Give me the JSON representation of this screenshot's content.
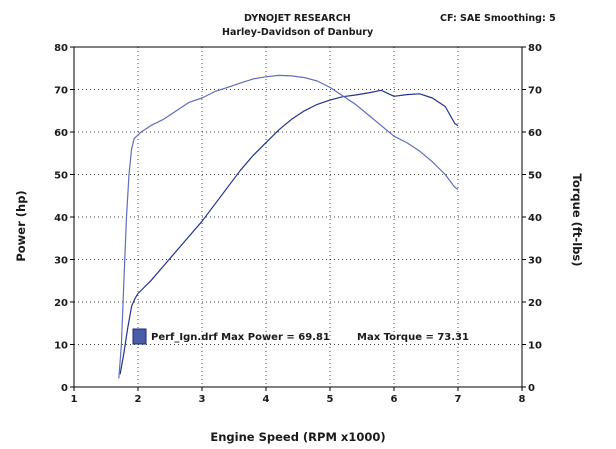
{
  "header": {
    "company": "DYNOJET RESEARCH",
    "dealer": "Harley-Davidson of Danbury",
    "settings": "CF: SAE  Smoothing: 5"
  },
  "chart_data": {
    "type": "line",
    "xlabel": "Engine Speed (RPM x1000)",
    "ylabel_left": "Power (hp)",
    "ylabel_right": "Torque (ft-lbs)",
    "xlim": [
      1,
      8
    ],
    "ylim": [
      0,
      80
    ],
    "y2lim": [
      0,
      80
    ],
    "x_ticks": [
      "1",
      "2",
      "3",
      "4",
      "5",
      "6",
      "7",
      "8"
    ],
    "y_ticks": [
      "0",
      "10",
      "20",
      "30",
      "40",
      "50",
      "60",
      "70",
      "80"
    ],
    "y2_ticks": [
      "0",
      "10",
      "20",
      "30",
      "40",
      "50",
      "60",
      "70",
      "80"
    ],
    "grid": true,
    "legend": {
      "position": "bottom-left",
      "swatch_color": "#4a5ea8",
      "text": "Perf_Ign.drf Max Power = 69.81",
      "text2": "Max Torque = 73.31"
    },
    "series": [
      {
        "axis": "left",
        "color": "#23338f",
        "x": [
          1.72,
          1.78,
          1.84,
          1.9,
          1.96,
          2.0,
          2.2,
          2.4,
          2.6,
          2.8,
          3.0,
          3.2,
          3.4,
          3.6,
          3.8,
          4.0,
          4.2,
          4.4,
          4.6,
          4.8,
          5.0,
          5.2,
          5.4,
          5.6,
          5.8,
          6.0,
          6.2,
          6.4,
          6.6,
          6.8,
          6.95,
          7.0
        ],
        "y": [
          3,
          8,
          14,
          19,
          21,
          22,
          25,
          28.5,
          32,
          35.5,
          39,
          43,
          47,
          51,
          54.5,
          57.5,
          60.5,
          63,
          65,
          66.5,
          67.5,
          68.3,
          68.7,
          69.2,
          69.81,
          68.4,
          68.8,
          69.0,
          68.0,
          66.0,
          62.0,
          61.5
        ]
      },
      {
        "axis": "right",
        "color": "#5f6fb8",
        "x": [
          1.7,
          1.74,
          1.78,
          1.82,
          1.86,
          1.9,
          1.94,
          1.98,
          2.05,
          2.2,
          2.4,
          2.6,
          2.8,
          3.0,
          3.2,
          3.4,
          3.6,
          3.8,
          4.0,
          4.2,
          4.4,
          4.6,
          4.8,
          5.0,
          5.2,
          5.4,
          5.6,
          5.8,
          6.0,
          6.2,
          6.4,
          6.6,
          6.8,
          6.95,
          7.0
        ],
        "y": [
          2,
          10,
          25,
          40,
          50,
          56,
          58.5,
          59,
          60,
          61.5,
          63,
          65,
          67,
          68,
          69.5,
          70.5,
          71.5,
          72.5,
          73.0,
          73.31,
          73.2,
          72.8,
          72,
          70.5,
          68.5,
          66.5,
          64,
          61.5,
          59,
          57.5,
          55.5,
          53,
          50,
          47,
          46.5
        ]
      }
    ]
  }
}
